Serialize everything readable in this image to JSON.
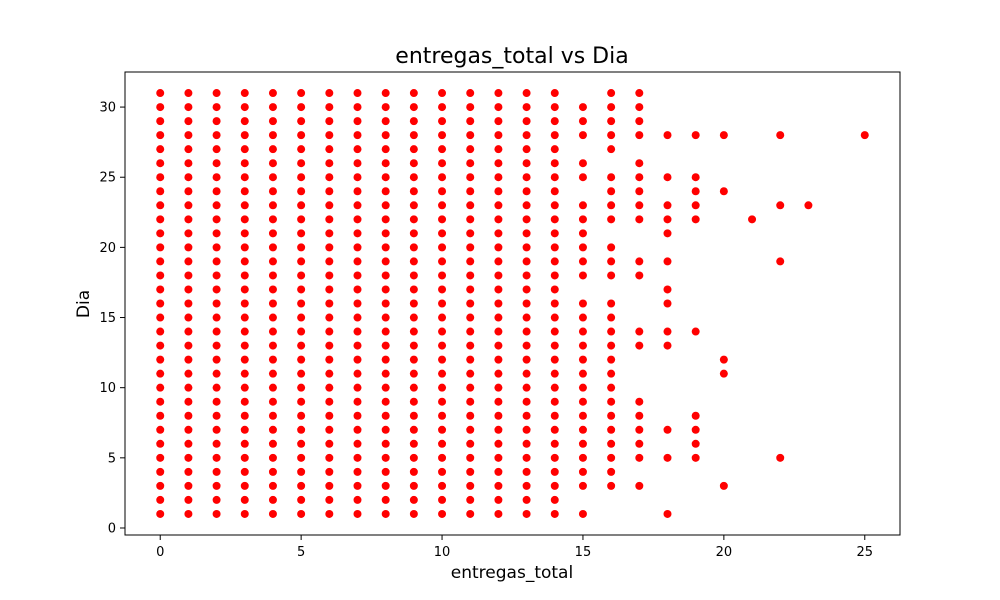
{
  "chart_data": {
    "type": "scatter",
    "title": "entregas_total vs Dia",
    "xlabel": "entregas_total",
    "ylabel": "Dia",
    "xlim": [
      -1.25,
      26.25
    ],
    "ylim": [
      -0.5,
      32.5
    ],
    "xticks": [
      0,
      5,
      10,
      15,
      20,
      25
    ],
    "yticks": [
      0,
      5,
      10,
      15,
      20,
      25,
      30
    ],
    "marker_color": "#ff0000",
    "grid": false,
    "columns": [
      {
        "x": 0,
        "days": [
          1,
          2,
          3,
          4,
          5,
          6,
          7,
          8,
          9,
          10,
          11,
          12,
          13,
          14,
          15,
          16,
          17,
          18,
          19,
          20,
          21,
          22,
          23,
          24,
          25,
          26,
          27,
          28,
          29,
          30,
          31
        ]
      },
      {
        "x": 1,
        "days": [
          1,
          2,
          3,
          4,
          5,
          6,
          7,
          8,
          9,
          10,
          11,
          12,
          13,
          14,
          15,
          16,
          17,
          18,
          19,
          20,
          21,
          22,
          23,
          24,
          25,
          26,
          27,
          28,
          29,
          30,
          31
        ]
      },
      {
        "x": 2,
        "days": [
          1,
          2,
          3,
          4,
          5,
          6,
          7,
          8,
          9,
          10,
          11,
          12,
          13,
          14,
          15,
          16,
          17,
          18,
          19,
          20,
          21,
          22,
          23,
          24,
          25,
          26,
          27,
          28,
          29,
          30,
          31
        ]
      },
      {
        "x": 3,
        "days": [
          1,
          2,
          3,
          4,
          5,
          6,
          7,
          8,
          9,
          10,
          11,
          12,
          13,
          14,
          15,
          16,
          17,
          18,
          19,
          20,
          21,
          22,
          23,
          24,
          25,
          26,
          27,
          28,
          29,
          30,
          31
        ]
      },
      {
        "x": 4,
        "days": [
          1,
          2,
          3,
          4,
          5,
          6,
          7,
          8,
          9,
          10,
          11,
          12,
          13,
          14,
          15,
          16,
          17,
          18,
          19,
          20,
          21,
          22,
          23,
          24,
          25,
          26,
          27,
          28,
          29,
          30,
          31
        ]
      },
      {
        "x": 5,
        "days": [
          1,
          2,
          3,
          4,
          5,
          6,
          7,
          8,
          9,
          10,
          11,
          12,
          13,
          14,
          15,
          16,
          17,
          18,
          19,
          20,
          21,
          22,
          23,
          24,
          25,
          26,
          27,
          28,
          29,
          30,
          31
        ]
      },
      {
        "x": 6,
        "days": [
          1,
          2,
          3,
          4,
          5,
          6,
          7,
          8,
          9,
          10,
          11,
          12,
          13,
          14,
          15,
          16,
          17,
          18,
          19,
          20,
          21,
          22,
          23,
          24,
          25,
          26,
          27,
          28,
          29,
          30,
          31
        ]
      },
      {
        "x": 7,
        "days": [
          1,
          2,
          3,
          4,
          5,
          6,
          7,
          8,
          9,
          10,
          11,
          12,
          13,
          14,
          15,
          16,
          17,
          18,
          19,
          20,
          21,
          22,
          23,
          24,
          25,
          26,
          27,
          28,
          29,
          30,
          31
        ]
      },
      {
        "x": 8,
        "days": [
          1,
          2,
          3,
          4,
          5,
          6,
          7,
          8,
          9,
          10,
          11,
          12,
          13,
          14,
          15,
          16,
          17,
          18,
          19,
          20,
          21,
          22,
          23,
          24,
          25,
          26,
          27,
          28,
          29,
          30,
          31
        ]
      },
      {
        "x": 9,
        "days": [
          1,
          2,
          3,
          4,
          5,
          6,
          7,
          8,
          9,
          10,
          11,
          12,
          13,
          14,
          15,
          16,
          17,
          18,
          19,
          20,
          21,
          22,
          23,
          24,
          25,
          26,
          27,
          28,
          29,
          30,
          31
        ]
      },
      {
        "x": 10,
        "days": [
          1,
          2,
          3,
          4,
          5,
          6,
          7,
          8,
          9,
          10,
          11,
          12,
          13,
          14,
          15,
          16,
          17,
          18,
          19,
          20,
          21,
          22,
          23,
          24,
          25,
          26,
          27,
          28,
          29,
          30,
          31
        ]
      },
      {
        "x": 11,
        "days": [
          1,
          2,
          3,
          4,
          5,
          6,
          7,
          8,
          9,
          10,
          11,
          12,
          13,
          14,
          15,
          16,
          17,
          18,
          19,
          20,
          21,
          22,
          23,
          24,
          25,
          26,
          27,
          28,
          29,
          30,
          31
        ]
      },
      {
        "x": 12,
        "days": [
          1,
          2,
          3,
          4,
          5,
          6,
          7,
          8,
          9,
          10,
          11,
          12,
          13,
          14,
          15,
          16,
          17,
          18,
          19,
          20,
          21,
          22,
          23,
          24,
          25,
          26,
          27,
          28,
          29,
          30,
          31
        ]
      },
      {
        "x": 13,
        "days": [
          1,
          2,
          3,
          4,
          5,
          6,
          7,
          8,
          9,
          10,
          11,
          12,
          13,
          14,
          15,
          16,
          17,
          18,
          19,
          20,
          21,
          22,
          23,
          24,
          25,
          26,
          27,
          28,
          29,
          30,
          31
        ]
      },
      {
        "x": 14,
        "days": [
          1,
          2,
          3,
          4,
          5,
          6,
          7,
          8,
          9,
          10,
          11,
          12,
          13,
          14,
          15,
          16,
          17,
          18,
          19,
          20,
          21,
          22,
          23,
          24,
          25,
          26,
          27,
          28,
          29,
          30,
          31
        ]
      },
      {
        "x": 15,
        "days": [
          1,
          3,
          4,
          5,
          6,
          7,
          8,
          9,
          10,
          11,
          12,
          13,
          14,
          15,
          16,
          18,
          19,
          20,
          21,
          22,
          23,
          25,
          26,
          28,
          29,
          30
        ]
      },
      {
        "x": 16,
        "days": [
          3,
          4,
          5,
          6,
          7,
          8,
          9,
          10,
          11,
          12,
          13,
          14,
          15,
          16,
          18,
          19,
          20,
          22,
          23,
          24,
          25,
          27,
          28,
          29,
          30,
          31
        ]
      },
      {
        "x": 17,
        "days": [
          3,
          5,
          6,
          7,
          8,
          9,
          13,
          14,
          18,
          19,
          22,
          23,
          24,
          25,
          26,
          28,
          29,
          30,
          31
        ]
      },
      {
        "x": 18,
        "days": [
          1,
          5,
          7,
          13,
          14,
          16,
          17,
          19,
          21,
          22,
          23,
          25,
          28
        ]
      },
      {
        "x": 19,
        "days": [
          5,
          6,
          7,
          8,
          14,
          22,
          23,
          24,
          25,
          28
        ]
      },
      {
        "x": 20,
        "days": [
          3,
          11,
          12,
          24,
          28
        ]
      },
      {
        "x": 21,
        "days": [
          22
        ]
      },
      {
        "x": 22,
        "days": [
          5,
          19,
          23,
          28
        ]
      },
      {
        "x": 23,
        "days": [
          23
        ]
      },
      {
        "x": 25,
        "days": [
          28
        ]
      }
    ]
  }
}
